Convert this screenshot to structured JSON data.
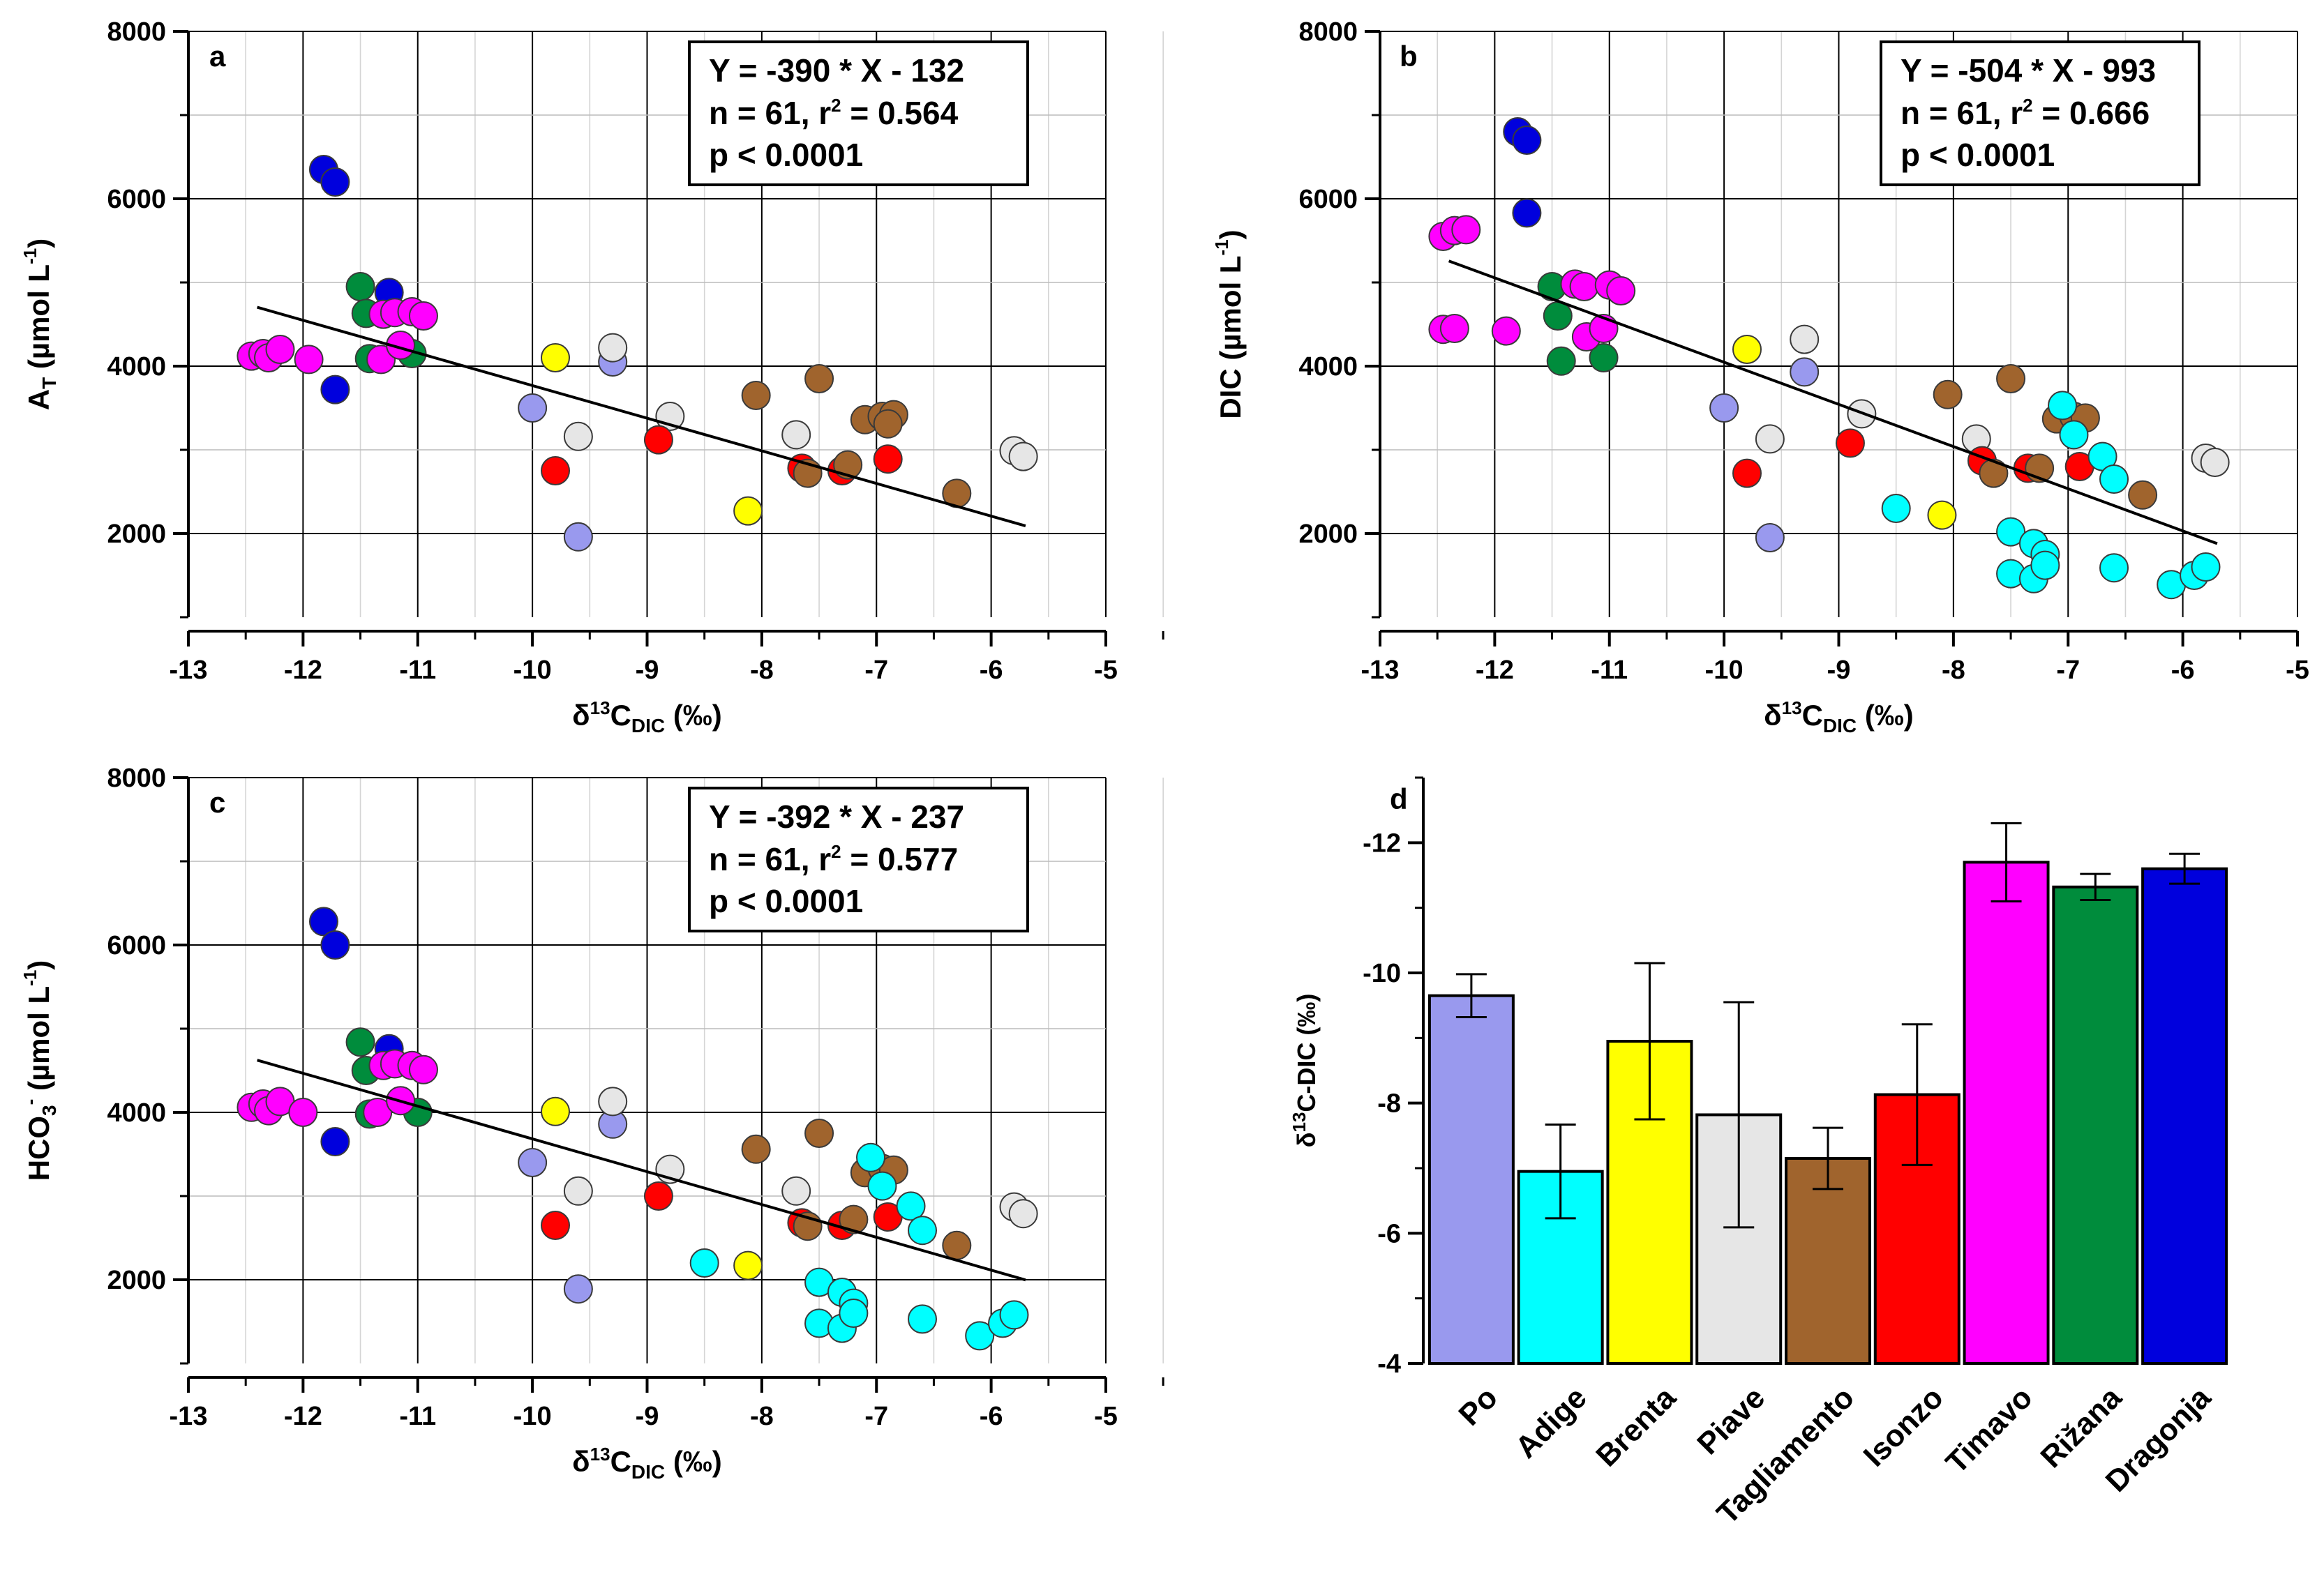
{
  "figure": {
    "colors": {
      "Po": "#9999ee",
      "Adige": "#00ffff",
      "Brenta": "#ffff00",
      "Piave": "#e6e6e6",
      "Tagliamento": "#a0642d",
      "Isonzo": "#ff0000",
      "Timavo": "#ff00ff",
      "Rizana": "#008c3c",
      "Dragonja": "#0000dd"
    }
  },
  "chart_data": [
    {
      "panel": "a",
      "type": "scatter",
      "xlabel": "δ13C-DIC (‰)",
      "xlabel_base": "δ",
      "xlabel_sup": "13",
      "xlabel_main": "C",
      "xlabel_sub": "DIC",
      "xlabel_unit": " (‰)",
      "ylabel": "AT (µmol L-1)",
      "ylabel_main": "A",
      "ylabel_sub": "T",
      "ylabel_unit": " (µmol L",
      "ylabel_sup": "-1",
      "ylabel_close": ")",
      "xlim": [
        -13,
        -5
      ],
      "ylim": [
        1000,
        8000
      ],
      "xticks": [
        -13,
        -12,
        -11,
        -10,
        -9,
        -8,
        -7,
        -6,
        -5
      ],
      "yticks": [
        2000,
        4000,
        6000,
        8000
      ],
      "fit": {
        "slope": -390,
        "intercept": -132,
        "x_range": [
          -12.4,
          -5.7
        ]
      },
      "stats": {
        "line1": "Y = -390 * X - 132",
        "line2_pre": "n = 61, r",
        "line2_sup": "2",
        "line2_post": " = 0.564",
        "line3": "p < 0.0001"
      },
      "series": [
        {
          "name": "Dragonja",
          "points": [
            [
              -11.82,
              6350
            ],
            [
              -11.72,
              6200
            ],
            [
              -11.72,
              3720
            ],
            [
              -11.25,
              4880
            ]
          ]
        },
        {
          "name": "Rizana",
          "points": [
            [
              -11.5,
              4950
            ],
            [
              -11.45,
              4630
            ],
            [
              -11.42,
              4090
            ],
            [
              -11.05,
              4150
            ]
          ]
        },
        {
          "name": "Timavo",
          "points": [
            [
              -12.45,
              4120
            ],
            [
              -12.35,
              4150
            ],
            [
              -12.3,
              4100
            ],
            [
              -12.2,
              4200
            ],
            [
              -11.95,
              4080
            ],
            [
              -11.32,
              4080
            ],
            [
              -11.3,
              4620
            ],
            [
              -11.2,
              4640
            ],
            [
              -11.15,
              4250
            ],
            [
              -11.05,
              4650
            ],
            [
              -10.95,
              4600
            ]
          ]
        },
        {
          "name": "Po",
          "points": [
            [
              -10.0,
              3500
            ],
            [
              -9.6,
              1960
            ],
            [
              -9.3,
              4050
            ]
          ]
        },
        {
          "name": "Piave",
          "points": [
            [
              -9.6,
              3160
            ],
            [
              -9.3,
              4220
            ],
            [
              -8.8,
              3400
            ],
            [
              -7.7,
              3180
            ],
            [
              -5.8,
              2990
            ],
            [
              -5.72,
              2920
            ]
          ]
        },
        {
          "name": "Brenta",
          "points": [
            [
              -9.8,
              4100
            ],
            [
              -8.12,
              2270
            ]
          ]
        },
        {
          "name": "Isonzo",
          "points": [
            [
              -9.8,
              2750
            ],
            [
              -8.9,
              3120
            ],
            [
              -7.65,
              2780
            ],
            [
              -7.3,
              2750
            ],
            [
              -6.9,
              2890
            ]
          ]
        },
        {
          "name": "Tagliamento",
          "points": [
            [
              -8.05,
              3650
            ],
            [
              -7.5,
              3850
            ],
            [
              -7.6,
              2720
            ],
            [
              -7.25,
              2820
            ],
            [
              -7.1,
              3360
            ],
            [
              -6.95,
              3400
            ],
            [
              -6.85,
              3420
            ],
            [
              -6.9,
              3310
            ],
            [
              -6.3,
              2480
            ]
          ]
        }
      ]
    },
    {
      "panel": "b",
      "type": "scatter",
      "xlabel": "δ13C-DIC (‰)",
      "xlabel_base": "δ",
      "xlabel_sup": "13",
      "xlabel_main": "C",
      "xlabel_sub": "DIC",
      "xlabel_unit": " (‰)",
      "ylabel": "DIC (µmol L-1)",
      "ylabel_main": "DIC",
      "ylabel_sub": "",
      "ylabel_unit": " (µmol L",
      "ylabel_sup": "-1",
      "ylabel_close": ")",
      "xlim": [
        -13,
        -5
      ],
      "ylim": [
        1000,
        8000
      ],
      "xticks": [
        -13,
        -12,
        -11,
        -10,
        -9,
        -8,
        -7,
        -6,
        -5
      ],
      "yticks": [
        2000,
        4000,
        6000,
        8000
      ],
      "fit": {
        "slope": -504,
        "intercept": -993,
        "x_range": [
          -12.4,
          -5.7
        ]
      },
      "stats": {
        "line1": "Y = -504 * X - 993",
        "line2_pre": "n = 61, r",
        "line2_sup": "2",
        "line2_post": " = 0.666",
        "line3": "p < 0.0001"
      },
      "series": [
        {
          "name": "Dragonja",
          "points": [
            [
              -11.8,
              6800
            ],
            [
              -11.72,
              6700
            ],
            [
              -11.72,
              5830
            ]
          ]
        },
        {
          "name": "Rizana",
          "points": [
            [
              -11.5,
              4950
            ],
            [
              -11.45,
              4600
            ],
            [
              -11.42,
              4060
            ],
            [
              -11.05,
              4100
            ]
          ]
        },
        {
          "name": "Timavo",
          "points": [
            [
              -12.45,
              5550
            ],
            [
              -12.35,
              5620
            ],
            [
              -12.25,
              5630
            ],
            [
              -12.45,
              4440
            ],
            [
              -12.35,
              4450
            ],
            [
              -11.9,
              4420
            ],
            [
              -11.3,
              4980
            ],
            [
              -11.22,
              4950
            ],
            [
              -11.2,
              4350
            ],
            [
              -11.05,
              4450
            ],
            [
              -11.0,
              4970
            ],
            [
              -10.9,
              4900
            ]
          ]
        },
        {
          "name": "Po",
          "points": [
            [
              -10.0,
              3500
            ],
            [
              -9.6,
              1950
            ],
            [
              -9.3,
              3930
            ]
          ]
        },
        {
          "name": "Piave",
          "points": [
            [
              -9.6,
              3130
            ],
            [
              -9.3,
              4320
            ],
            [
              -8.8,
              3430
            ],
            [
              -7.8,
              3130
            ],
            [
              -5.8,
              2900
            ],
            [
              -5.72,
              2850
            ]
          ]
        },
        {
          "name": "Brenta",
          "points": [
            [
              -9.8,
              4200
            ],
            [
              -8.1,
              2220
            ]
          ]
        },
        {
          "name": "Isonzo",
          "points": [
            [
              -9.8,
              2720
            ],
            [
              -8.9,
              3080
            ],
            [
              -7.75,
              2870
            ],
            [
              -7.35,
              2780
            ],
            [
              -6.9,
              2800
            ]
          ]
        },
        {
          "name": "Tagliamento",
          "points": [
            [
              -8.05,
              3660
            ],
            [
              -7.5,
              3850
            ],
            [
              -7.65,
              2720
            ],
            [
              -7.25,
              2780
            ],
            [
              -7.1,
              3370
            ],
            [
              -6.95,
              3400
            ],
            [
              -6.85,
              3380
            ],
            [
              -6.35,
              2460
            ]
          ]
        },
        {
          "name": "Adige",
          "points": [
            [
              -8.5,
              2300
            ],
            [
              -7.5,
              2020
            ],
            [
              -7.5,
              1520
            ],
            [
              -7.3,
              1880
            ],
            [
              -7.3,
              1460
            ],
            [
              -7.2,
              1750
            ],
            [
              -7.2,
              1620
            ],
            [
              -7.05,
              3530
            ],
            [
              -6.95,
              3180
            ],
            [
              -6.7,
              2920
            ],
            [
              -6.6,
              2650
            ],
            [
              -6.6,
              1590
            ],
            [
              -6.1,
              1390
            ],
            [
              -5.9,
              1500
            ],
            [
              -5.8,
              1600
            ]
          ]
        }
      ]
    },
    {
      "panel": "c",
      "type": "scatter",
      "xlabel": "δ13C-DIC (‰)",
      "xlabel_base": "δ",
      "xlabel_sup": "13",
      "xlabel_main": "C",
      "xlabel_sub": "DIC",
      "xlabel_unit": " (‰)",
      "ylabel": "HCO3- (µmol L-1)",
      "ylabel_main": "HCO",
      "ylabel_sub": "3",
      "ylabel_sup0": "-",
      "ylabel_unit": " (µmol L",
      "ylabel_sup": "-1",
      "ylabel_close": ")",
      "xlim": [
        -13,
        -5
      ],
      "ylim": [
        1000,
        8000
      ],
      "xticks": [
        -13,
        -12,
        -11,
        -10,
        -9,
        -8,
        -7,
        -6,
        -5
      ],
      "yticks": [
        2000,
        4000,
        6000,
        8000
      ],
      "fit": {
        "slope": -392,
        "intercept": -237,
        "x_range": [
          -12.4,
          -5.7
        ]
      },
      "stats": {
        "line1": "Y = -392 * X - 237",
        "line2_pre": "n = 61, r",
        "line2_sup": "2",
        "line2_post": " = 0.577",
        "line3": "p < 0.0001"
      },
      "series": [
        {
          "name": "Dragonja",
          "points": [
            [
              -11.82,
              6280
            ],
            [
              -11.72,
              6000
            ],
            [
              -11.72,
              3650
            ],
            [
              -11.25,
              4760
            ]
          ]
        },
        {
          "name": "Rizana",
          "points": [
            [
              -11.5,
              4840
            ],
            [
              -11.45,
              4500
            ],
            [
              -11.42,
              3980
            ],
            [
              -11.0,
              4000
            ]
          ]
        },
        {
          "name": "Timavo",
          "points": [
            [
              -12.45,
              4060
            ],
            [
              -12.35,
              4100
            ],
            [
              -12.3,
              4020
            ],
            [
              -12.2,
              4130
            ],
            [
              -12.0,
              4000
            ],
            [
              -11.35,
              4000
            ],
            [
              -11.3,
              4560
            ],
            [
              -11.2,
              4580
            ],
            [
              -11.15,
              4140
            ],
            [
              -11.05,
              4560
            ],
            [
              -10.95,
              4510
            ]
          ]
        },
        {
          "name": "Po",
          "points": [
            [
              -10.0,
              3400
            ],
            [
              -9.6,
              1890
            ],
            [
              -9.3,
              3860
            ]
          ]
        },
        {
          "name": "Piave",
          "points": [
            [
              -9.6,
              3060
            ],
            [
              -9.3,
              4130
            ],
            [
              -8.8,
              3320
            ],
            [
              -7.7,
              3060
            ],
            [
              -5.8,
              2870
            ],
            [
              -5.72,
              2790
            ]
          ]
        },
        {
          "name": "Brenta",
          "points": [
            [
              -9.8,
              4010
            ],
            [
              -8.12,
              2170
            ]
          ]
        },
        {
          "name": "Isonzo",
          "points": [
            [
              -9.8,
              2650
            ],
            [
              -8.9,
              3000
            ],
            [
              -7.65,
              2680
            ],
            [
              -7.3,
              2650
            ],
            [
              -6.9,
              2750
            ]
          ]
        },
        {
          "name": "Tagliamento",
          "points": [
            [
              -8.05,
              3560
            ],
            [
              -7.5,
              3750
            ],
            [
              -7.6,
              2640
            ],
            [
              -7.2,
              2720
            ],
            [
              -7.1,
              3280
            ],
            [
              -6.95,
              3330
            ],
            [
              -6.85,
              3310
            ],
            [
              -6.3,
              2410
            ]
          ]
        },
        {
          "name": "Adige",
          "points": [
            [
              -8.5,
              2200
            ],
            [
              -7.5,
              1970
            ],
            [
              -7.5,
              1480
            ],
            [
              -7.3,
              1850
            ],
            [
              -7.3,
              1420
            ],
            [
              -7.2,
              1720
            ],
            [
              -7.2,
              1600
            ],
            [
              -7.05,
              3460
            ],
            [
              -6.95,
              3120
            ],
            [
              -6.7,
              2880
            ],
            [
              -6.6,
              2590
            ],
            [
              -6.6,
              1530
            ],
            [
              -6.1,
              1330
            ],
            [
              -5.9,
              1480
            ],
            [
              -5.8,
              1580
            ]
          ]
        }
      ]
    },
    {
      "panel": "d",
      "type": "bar",
      "ylabel": "δ13C-DIC (‰)",
      "ylabel_base": "δ",
      "ylabel_sup": "13",
      "ylabel_rest": "C-DIC (‰)",
      "ylim": [
        -4,
        -13
      ],
      "yticks": [
        -4,
        -6,
        -8,
        -10,
        -12
      ],
      "baseline": -4,
      "categories": [
        "Po",
        "Adige",
        "Brenta",
        "Piave",
        "Tagliamento",
        "Isonzo",
        "Timavo",
        "Rižana",
        "Dragonja"
      ],
      "values": [
        -9.65,
        -6.95,
        -8.95,
        -7.82,
        -7.15,
        -8.13,
        -11.7,
        -11.32,
        -11.6
      ],
      "errors": [
        0.33,
        0.72,
        1.2,
        1.73,
        0.47,
        1.08,
        0.6,
        0.2,
        0.23
      ]
    }
  ]
}
